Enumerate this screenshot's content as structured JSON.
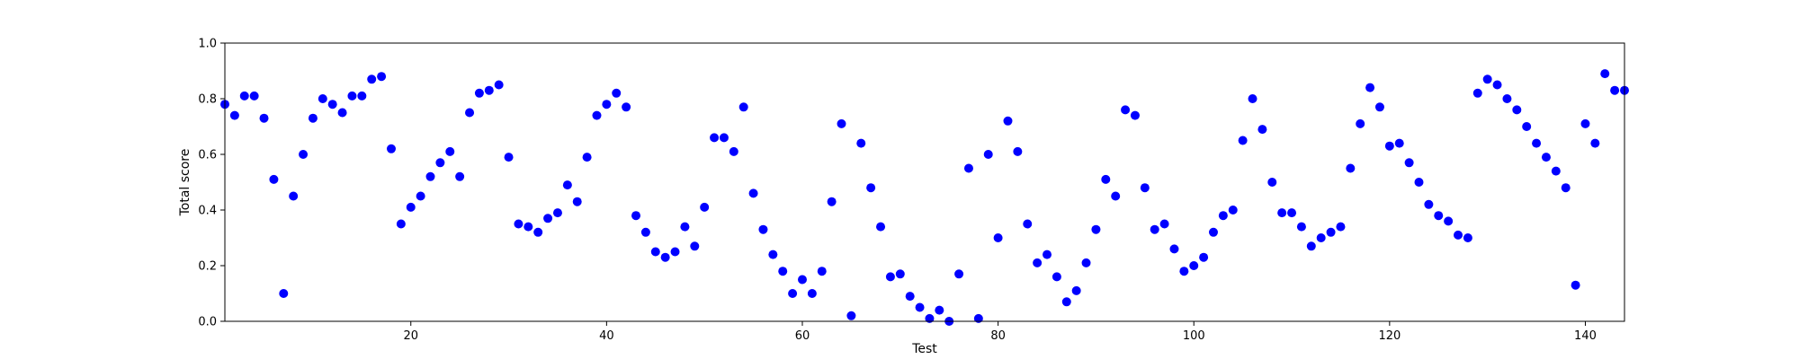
{
  "chart_data": {
    "type": "scatter",
    "title": "",
    "xlabel": "Test",
    "ylabel": "Total score",
    "xlim": [
      1,
      144
    ],
    "ylim": [
      0.0,
      1.0
    ],
    "x_ticks": [
      20,
      40,
      60,
      80,
      100,
      120,
      140
    ],
    "y_ticks": [
      0.0,
      0.2,
      0.4,
      0.6,
      0.8,
      1.0
    ],
    "x_tick_labels": [
      "20",
      "40",
      "60",
      "80",
      "100",
      "120",
      "140"
    ],
    "y_tick_labels": [
      "0.0",
      "0.2",
      "0.4",
      "0.6",
      "0.8",
      "1.0"
    ],
    "grid": false,
    "marker_color": "#0000ff",
    "series": [
      {
        "x": [
          1,
          2,
          3,
          4,
          5,
          6,
          7,
          8,
          9,
          10,
          11,
          12,
          13,
          14,
          15,
          16,
          17,
          18,
          19,
          20,
          21,
          22,
          23,
          24,
          25,
          26,
          27,
          28,
          29,
          30,
          31,
          32,
          33,
          34,
          35,
          36,
          37,
          38,
          39,
          40,
          41,
          42,
          43,
          44,
          45,
          46,
          47,
          48,
          49,
          50,
          51,
          52,
          53,
          54,
          55,
          56,
          57,
          58,
          59,
          60,
          61,
          62,
          63,
          64,
          65,
          66,
          67,
          68,
          69,
          70,
          71,
          72,
          73,
          74,
          75,
          76,
          77,
          78,
          79,
          80,
          81,
          82,
          83,
          84,
          85,
          86,
          87,
          88,
          89,
          90,
          91,
          92,
          93,
          94,
          95,
          96,
          97,
          98,
          99,
          100,
          101,
          102,
          103,
          104,
          105,
          106,
          107,
          108,
          109,
          110,
          111,
          112,
          113,
          114,
          115,
          116,
          117,
          118,
          119,
          120,
          121,
          122,
          123,
          124,
          125,
          126,
          127,
          128,
          129,
          130,
          131,
          132,
          133,
          134,
          135,
          136,
          137,
          138,
          139,
          140,
          141,
          142,
          143,
          144
        ],
        "y": [
          0.78,
          0.74,
          0.81,
          0.81,
          0.73,
          0.51,
          0.1,
          0.45,
          0.6,
          0.73,
          0.8,
          0.78,
          0.75,
          0.81,
          0.81,
          0.87,
          0.88,
          0.62,
          0.35,
          0.41,
          0.45,
          0.52,
          0.57,
          0.61,
          0.52,
          0.75,
          0.82,
          0.83,
          0.85,
          0.59,
          0.35,
          0.34,
          0.32,
          0.37,
          0.39,
          0.49,
          0.43,
          0.59,
          0.74,
          0.78,
          0.82,
          0.77,
          0.38,
          0.32,
          0.25,
          0.23,
          0.25,
          0.34,
          0.27,
          0.41,
          0.66,
          0.66,
          0.61,
          0.77,
          0.46,
          0.33,
          0.24,
          0.18,
          0.1,
          0.15,
          0.1,
          0.18,
          0.43,
          0.71,
          0.02,
          0.64,
          0.48,
          0.34,
          0.16,
          0.17,
          0.09,
          0.05,
          0.01,
          0.04,
          0.0,
          0.17,
          0.55,
          0.01,
          0.6,
          0.3,
          0.72,
          0.61,
          0.35,
          0.21,
          0.24,
          0.16,
          0.07,
          0.11,
          0.21,
          0.33,
          0.51,
          0.45,
          0.76,
          0.74,
          0.48,
          0.33,
          0.35,
          0.26,
          0.18,
          0.2,
          0.23,
          0.32,
          0.38,
          0.4,
          0.65,
          0.8,
          0.69,
          0.5,
          0.39,
          0.39,
          0.34,
          0.27,
          0.3,
          0.32,
          0.34,
          0.55,
          0.71,
          0.84,
          0.77,
          0.63,
          0.64,
          0.57,
          0.5,
          0.42,
          0.38,
          0.36,
          0.31,
          0.3,
          0.82,
          0.87,
          0.85,
          0.8,
          0.76,
          0.7,
          0.64,
          0.59,
          0.54,
          0.48,
          0.13,
          0.71,
          0.64,
          0.89,
          0.83,
          0.83
        ]
      }
    ]
  }
}
